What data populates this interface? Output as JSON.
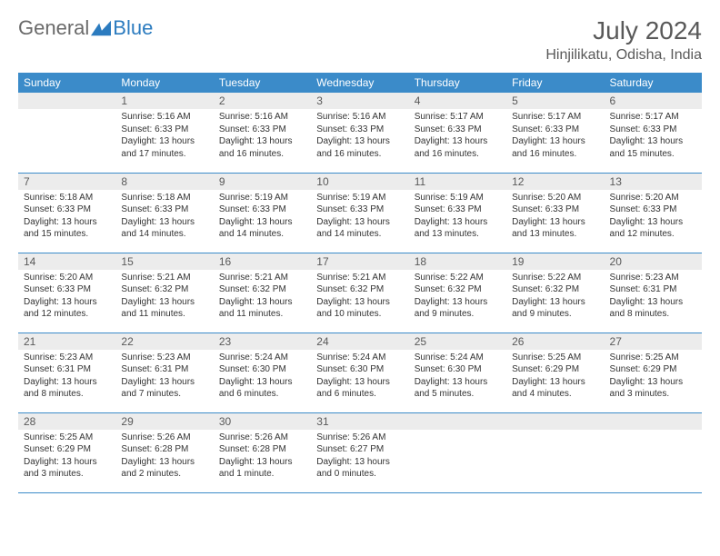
{
  "logo": {
    "text1": "General",
    "text2": "Blue"
  },
  "title": "July 2024",
  "location": "Hinjilikatu, Odisha, India",
  "day_headers": [
    "Sunday",
    "Monday",
    "Tuesday",
    "Wednesday",
    "Thursday",
    "Friday",
    "Saturday"
  ],
  "colors": {
    "header_bg": "#3b8bc9",
    "header_text": "#ffffff",
    "daynum_bg": "#ececec",
    "text_muted": "#595959",
    "border": "#3b8bc9"
  },
  "weeks": [
    [
      {
        "n": "",
        "sr": "",
        "ss": "",
        "dl": ""
      },
      {
        "n": "1",
        "sr": "Sunrise: 5:16 AM",
        "ss": "Sunset: 6:33 PM",
        "dl": "Daylight: 13 hours and 17 minutes."
      },
      {
        "n": "2",
        "sr": "Sunrise: 5:16 AM",
        "ss": "Sunset: 6:33 PM",
        "dl": "Daylight: 13 hours and 16 minutes."
      },
      {
        "n": "3",
        "sr": "Sunrise: 5:16 AM",
        "ss": "Sunset: 6:33 PM",
        "dl": "Daylight: 13 hours and 16 minutes."
      },
      {
        "n": "4",
        "sr": "Sunrise: 5:17 AM",
        "ss": "Sunset: 6:33 PM",
        "dl": "Daylight: 13 hours and 16 minutes."
      },
      {
        "n": "5",
        "sr": "Sunrise: 5:17 AM",
        "ss": "Sunset: 6:33 PM",
        "dl": "Daylight: 13 hours and 16 minutes."
      },
      {
        "n": "6",
        "sr": "Sunrise: 5:17 AM",
        "ss": "Sunset: 6:33 PM",
        "dl": "Daylight: 13 hours and 15 minutes."
      }
    ],
    [
      {
        "n": "7",
        "sr": "Sunrise: 5:18 AM",
        "ss": "Sunset: 6:33 PM",
        "dl": "Daylight: 13 hours and 15 minutes."
      },
      {
        "n": "8",
        "sr": "Sunrise: 5:18 AM",
        "ss": "Sunset: 6:33 PM",
        "dl": "Daylight: 13 hours and 14 minutes."
      },
      {
        "n": "9",
        "sr": "Sunrise: 5:19 AM",
        "ss": "Sunset: 6:33 PM",
        "dl": "Daylight: 13 hours and 14 minutes."
      },
      {
        "n": "10",
        "sr": "Sunrise: 5:19 AM",
        "ss": "Sunset: 6:33 PM",
        "dl": "Daylight: 13 hours and 14 minutes."
      },
      {
        "n": "11",
        "sr": "Sunrise: 5:19 AM",
        "ss": "Sunset: 6:33 PM",
        "dl": "Daylight: 13 hours and 13 minutes."
      },
      {
        "n": "12",
        "sr": "Sunrise: 5:20 AM",
        "ss": "Sunset: 6:33 PM",
        "dl": "Daylight: 13 hours and 13 minutes."
      },
      {
        "n": "13",
        "sr": "Sunrise: 5:20 AM",
        "ss": "Sunset: 6:33 PM",
        "dl": "Daylight: 13 hours and 12 minutes."
      }
    ],
    [
      {
        "n": "14",
        "sr": "Sunrise: 5:20 AM",
        "ss": "Sunset: 6:33 PM",
        "dl": "Daylight: 13 hours and 12 minutes."
      },
      {
        "n": "15",
        "sr": "Sunrise: 5:21 AM",
        "ss": "Sunset: 6:32 PM",
        "dl": "Daylight: 13 hours and 11 minutes."
      },
      {
        "n": "16",
        "sr": "Sunrise: 5:21 AM",
        "ss": "Sunset: 6:32 PM",
        "dl": "Daylight: 13 hours and 11 minutes."
      },
      {
        "n": "17",
        "sr": "Sunrise: 5:21 AM",
        "ss": "Sunset: 6:32 PM",
        "dl": "Daylight: 13 hours and 10 minutes."
      },
      {
        "n": "18",
        "sr": "Sunrise: 5:22 AM",
        "ss": "Sunset: 6:32 PM",
        "dl": "Daylight: 13 hours and 9 minutes."
      },
      {
        "n": "19",
        "sr": "Sunrise: 5:22 AM",
        "ss": "Sunset: 6:32 PM",
        "dl": "Daylight: 13 hours and 9 minutes."
      },
      {
        "n": "20",
        "sr": "Sunrise: 5:23 AM",
        "ss": "Sunset: 6:31 PM",
        "dl": "Daylight: 13 hours and 8 minutes."
      }
    ],
    [
      {
        "n": "21",
        "sr": "Sunrise: 5:23 AM",
        "ss": "Sunset: 6:31 PM",
        "dl": "Daylight: 13 hours and 8 minutes."
      },
      {
        "n": "22",
        "sr": "Sunrise: 5:23 AM",
        "ss": "Sunset: 6:31 PM",
        "dl": "Daylight: 13 hours and 7 minutes."
      },
      {
        "n": "23",
        "sr": "Sunrise: 5:24 AM",
        "ss": "Sunset: 6:30 PM",
        "dl": "Daylight: 13 hours and 6 minutes."
      },
      {
        "n": "24",
        "sr": "Sunrise: 5:24 AM",
        "ss": "Sunset: 6:30 PM",
        "dl": "Daylight: 13 hours and 6 minutes."
      },
      {
        "n": "25",
        "sr": "Sunrise: 5:24 AM",
        "ss": "Sunset: 6:30 PM",
        "dl": "Daylight: 13 hours and 5 minutes."
      },
      {
        "n": "26",
        "sr": "Sunrise: 5:25 AM",
        "ss": "Sunset: 6:29 PM",
        "dl": "Daylight: 13 hours and 4 minutes."
      },
      {
        "n": "27",
        "sr": "Sunrise: 5:25 AM",
        "ss": "Sunset: 6:29 PM",
        "dl": "Daylight: 13 hours and 3 minutes."
      }
    ],
    [
      {
        "n": "28",
        "sr": "Sunrise: 5:25 AM",
        "ss": "Sunset: 6:29 PM",
        "dl": "Daylight: 13 hours and 3 minutes."
      },
      {
        "n": "29",
        "sr": "Sunrise: 5:26 AM",
        "ss": "Sunset: 6:28 PM",
        "dl": "Daylight: 13 hours and 2 minutes."
      },
      {
        "n": "30",
        "sr": "Sunrise: 5:26 AM",
        "ss": "Sunset: 6:28 PM",
        "dl": "Daylight: 13 hours and 1 minute."
      },
      {
        "n": "31",
        "sr": "Sunrise: 5:26 AM",
        "ss": "Sunset: 6:27 PM",
        "dl": "Daylight: 13 hours and 0 minutes."
      },
      {
        "n": "",
        "sr": "",
        "ss": "",
        "dl": ""
      },
      {
        "n": "",
        "sr": "",
        "ss": "",
        "dl": ""
      },
      {
        "n": "",
        "sr": "",
        "ss": "",
        "dl": ""
      }
    ]
  ]
}
